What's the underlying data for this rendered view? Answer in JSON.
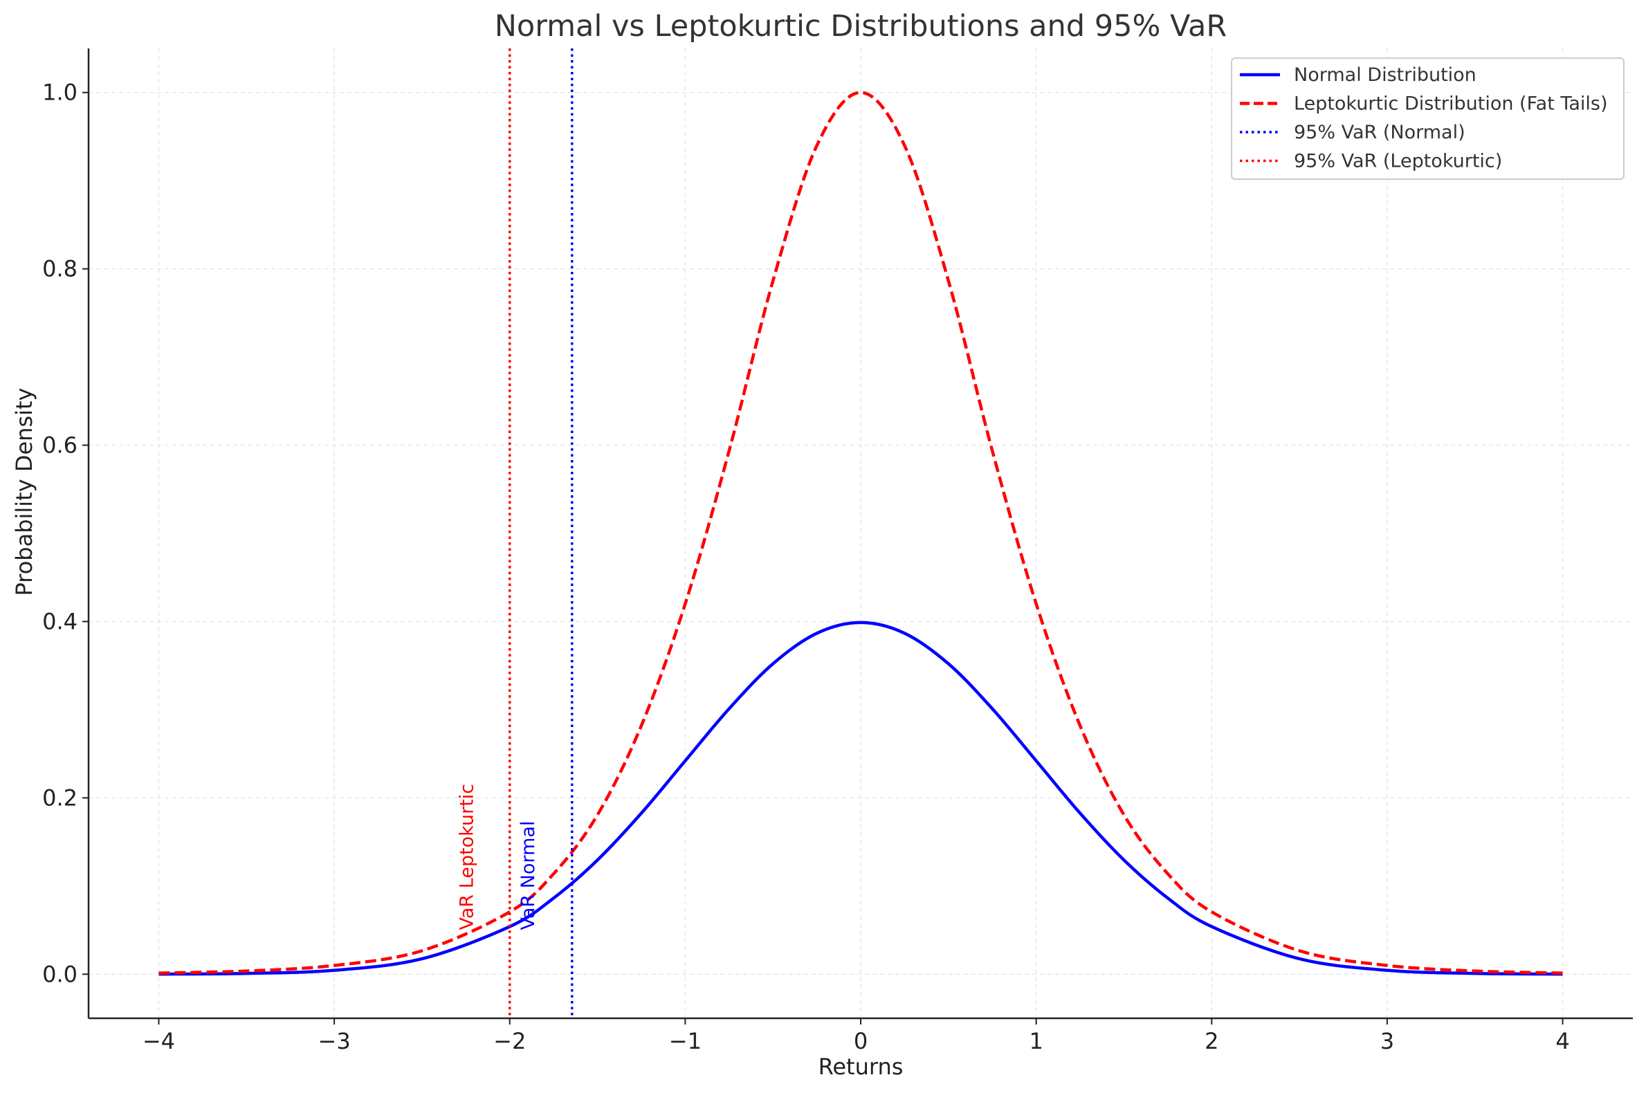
{
  "chart_data": {
    "type": "line",
    "title": "Normal vs Leptokurtic Distributions and 95% VaR",
    "xlabel": "Returns",
    "ylabel": "Probability Density",
    "xlim": [
      -4.4,
      4.4
    ],
    "ylim": [
      -0.05,
      1.05
    ],
    "xticks": [
      -4,
      -3,
      -2,
      -1,
      0,
      1,
      2,
      3,
      4
    ],
    "xtick_labels": [
      "−4",
      "−3",
      "−2",
      "−1",
      "0",
      "1",
      "2",
      "3",
      "4"
    ],
    "yticks": [
      0.0,
      0.2,
      0.4,
      0.6,
      0.8,
      1.0
    ],
    "ytick_labels": [
      "0.0",
      "0.2",
      "0.4",
      "0.6",
      "0.8",
      "1.0"
    ],
    "grid": true,
    "legend_position": "top-right",
    "series": [
      {
        "name": "Normal Distribution",
        "color": "#0000ff",
        "style": "solid",
        "x": [
          -4.0,
          -3.5,
          -3.0,
          -2.5,
          -2.0,
          -1.75,
          -1.5,
          -1.25,
          -1.0,
          -0.75,
          -0.5,
          -0.25,
          0.0,
          0.25,
          0.5,
          0.75,
          1.0,
          1.25,
          1.5,
          1.75,
          2.0,
          2.5,
          3.0,
          3.5,
          4.0
        ],
        "y": [
          0.0001,
          0.0009,
          0.0044,
          0.0175,
          0.054,
          0.0863,
          0.1295,
          0.1826,
          0.242,
          0.3011,
          0.3521,
          0.3867,
          0.3989,
          0.3867,
          0.3521,
          0.3011,
          0.242,
          0.1826,
          0.1295,
          0.0863,
          0.054,
          0.0175,
          0.0044,
          0.0009,
          0.0001
        ]
      },
      {
        "name": "Leptokurtic Distribution (Fat Tails)",
        "color": "#ff0000",
        "style": "dashed",
        "x": [
          -4.0,
          -3.5,
          -3.0,
          -2.5,
          -2.0,
          -1.75,
          -1.5,
          -1.25,
          -1.0,
          -0.75,
          -0.5,
          -0.25,
          0.0,
          0.25,
          0.5,
          0.75,
          1.0,
          1.25,
          1.5,
          1.75,
          2.0,
          2.5,
          3.0,
          3.5,
          4.0
        ],
        "y": [
          0.0013,
          0.0036,
          0.0099,
          0.0266,
          0.0707,
          0.1139,
          0.1807,
          0.2819,
          0.42,
          0.5936,
          0.7864,
          0.9398,
          1.0,
          0.9398,
          0.7864,
          0.5936,
          0.42,
          0.2819,
          0.1807,
          0.1139,
          0.0707,
          0.0266,
          0.0099,
          0.0036,
          0.0013
        ]
      }
    ],
    "vlines": [
      {
        "name": "95% VaR (Normal)",
        "x": -1.645,
        "color": "#0000ff",
        "style": "dotted"
      },
      {
        "name": "95% VaR (Leptokurtic)",
        "x": -2.0,
        "color": "#ff0000",
        "style": "dotted"
      }
    ],
    "annotations": [
      {
        "text": "VaR Normal",
        "x": -1.9,
        "y": 0.05,
        "color": "#0000ff",
        "rotation": 90
      },
      {
        "text": "VaR Leptokurtic",
        "x": -2.25,
        "y": 0.05,
        "color": "#ff0000",
        "rotation": 90
      }
    ]
  }
}
